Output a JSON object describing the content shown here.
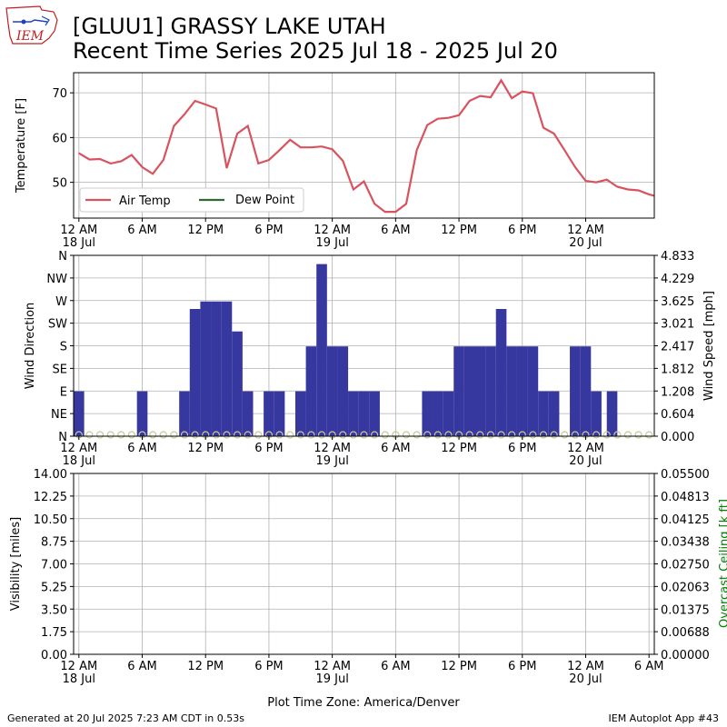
{
  "header": {
    "title_line1": "[GLUU1] GRASSY LAKE  UTAH",
    "title_line2": "Recent Time Series 2025 Jul 18 - 2025 Jul 20",
    "logo_text": "IEM"
  },
  "footer": {
    "generated": "Generated at 20 Jul 2025 7:23 AM CDT in 0.53s",
    "app": "IEM Autoplot App #43",
    "xlabel": "Plot Time Zone: America/Denver"
  },
  "colors": {
    "air_temp": "#d9535f",
    "dew_point": "#2e6b2e",
    "wind_bar": "#3737a0",
    "direction_marker": "#c8c896",
    "ceiling_axis": "#008000"
  },
  "chart_data": [
    {
      "type": "line",
      "ylabel": "Temperature [F]",
      "ylim": [
        42,
        74.5
      ],
      "y_ticks": [
        50,
        60,
        70
      ],
      "x_range_hours": [
        -0.5,
        54.5
      ],
      "x_ticks": [
        {
          "h": 0,
          "label": "12 AM",
          "date": "18 Jul"
        },
        {
          "h": 6,
          "label": "6 AM"
        },
        {
          "h": 12,
          "label": "12 PM"
        },
        {
          "h": 18,
          "label": "6 PM"
        },
        {
          "h": 24,
          "label": "12 AM",
          "date": "19 Jul"
        },
        {
          "h": 30,
          "label": "6 AM"
        },
        {
          "h": 36,
          "label": "12 PM"
        },
        {
          "h": 42,
          "label": "6 PM"
        },
        {
          "h": 48,
          "label": "12 AM",
          "date": "20 Jul"
        }
      ],
      "grid": true,
      "legend": "lower-left",
      "series": [
        {
          "name": "Air Temp",
          "x": [
            0,
            1,
            2,
            3,
            4,
            5,
            6,
            7,
            8,
            9,
            10,
            11,
            12,
            13,
            14,
            15,
            16,
            17,
            18,
            19,
            20,
            21,
            22,
            23,
            24,
            25,
            26,
            27,
            28,
            29,
            30,
            31,
            32,
            33,
            34,
            35,
            36,
            37,
            38,
            39,
            40,
            41,
            42,
            43,
            44,
            45,
            46,
            47,
            48,
            49,
            50,
            51,
            52,
            53,
            54,
            54.5
          ],
          "y": [
            56.5,
            55.1,
            55.2,
            54.2,
            54.7,
            56.1,
            53.4,
            51.9,
            55.0,
            62.6,
            65.2,
            68.2,
            67.4,
            66.5,
            53.2,
            60.9,
            62.6,
            54.2,
            55.0,
            57.2,
            59.5,
            57.8,
            57.8,
            58.0,
            57.4,
            54.8,
            48.4,
            50.2,
            45.2,
            43.4,
            43.4,
            45.2,
            57.2,
            62.8,
            64.2,
            64.4,
            65.0,
            68.2,
            69.3,
            69.0,
            72.8,
            68.8,
            70.3,
            69.9,
            62.2,
            60.9,
            57.2,
            53.4,
            50.3,
            50.0,
            50.6,
            49.0,
            48.4,
            48.2,
            47.3,
            47.0
          ]
        },
        {
          "name": "Dew Point",
          "x": [],
          "y": []
        }
      ]
    },
    {
      "type": "bar",
      "ylabel": "Wind Direction",
      "y2label": "Wind Speed [mph]",
      "direction_ticks": [
        "N",
        "NE",
        "E",
        "SE",
        "S",
        "SW",
        "W",
        "NW",
        "N"
      ],
      "speed_ticks": [
        "0.000",
        "0.604",
        "1.208",
        "1.812",
        "2.417",
        "3.021",
        "3.625",
        "4.229",
        "4.833"
      ],
      "speed_lim": [
        0,
        4.833
      ],
      "bar_width_hours": 1,
      "wind_speed_bars": [
        {
          "h": 0,
          "mph": 1.2
        },
        {
          "h": 6,
          "mph": 1.2
        },
        {
          "h": 10,
          "mph": 1.2
        },
        {
          "h": 11,
          "mph": 3.4
        },
        {
          "h": 12,
          "mph": 3.6
        },
        {
          "h": 13,
          "mph": 3.6
        },
        {
          "h": 14,
          "mph": 3.6
        },
        {
          "h": 15,
          "mph": 2.8
        },
        {
          "h": 16,
          "mph": 1.2
        },
        {
          "h": 18,
          "mph": 1.2
        },
        {
          "h": 19,
          "mph": 1.2
        },
        {
          "h": 21,
          "mph": 1.2
        },
        {
          "h": 22,
          "mph": 2.4
        },
        {
          "h": 23,
          "mph": 4.6
        },
        {
          "h": 24,
          "mph": 2.4
        },
        {
          "h": 25,
          "mph": 2.4
        },
        {
          "h": 26,
          "mph": 1.2
        },
        {
          "h": 27,
          "mph": 1.2
        },
        {
          "h": 28,
          "mph": 1.2
        },
        {
          "h": 33,
          "mph": 1.2
        },
        {
          "h": 34,
          "mph": 1.2
        },
        {
          "h": 35,
          "mph": 1.2
        },
        {
          "h": 36,
          "mph": 2.4
        },
        {
          "h": 37,
          "mph": 2.4
        },
        {
          "h": 38,
          "mph": 2.4
        },
        {
          "h": 39,
          "mph": 2.4
        },
        {
          "h": 40,
          "mph": 3.4
        },
        {
          "h": 41,
          "mph": 2.4
        },
        {
          "h": 42,
          "mph": 2.4
        },
        {
          "h": 43,
          "mph": 2.4
        },
        {
          "h": 44,
          "mph": 1.2
        },
        {
          "h": 45,
          "mph": 1.2
        },
        {
          "h": 47,
          "mph": 2.4
        },
        {
          "h": 48,
          "mph": 2.4
        },
        {
          "h": 49,
          "mph": 1.2
        },
        {
          "h": 50.5,
          "mph": 1.2
        }
      ],
      "direction_markers_deg_hours": [
        0,
        1,
        2,
        3,
        4,
        5,
        6,
        7,
        8,
        9,
        10,
        11,
        12,
        13,
        14,
        15,
        16,
        17,
        18,
        19,
        20,
        21,
        22,
        23,
        24,
        25,
        26,
        27,
        28,
        29,
        30,
        31,
        32,
        33,
        34,
        35,
        36,
        37,
        38,
        39,
        40,
        41,
        42,
        43,
        44,
        45,
        46,
        47,
        48,
        49,
        50,
        51,
        52,
        53,
        54
      ],
      "direction_markers_deg": 0
    },
    {
      "type": "line",
      "ylabel": "Visibility [miles]",
      "y2label": "Overcast Ceiling [k ft]",
      "visibility_ticks": [
        "0.00",
        "1.75",
        "3.50",
        "5.25",
        "7.00",
        "8.75",
        "10.50",
        "12.25",
        "14.00"
      ],
      "ceiling_ticks": [
        "0.00000",
        "0.00688",
        "0.01375",
        "0.02063",
        "0.02750",
        "0.03438",
        "0.04125",
        "0.04813",
        "0.05500"
      ],
      "extra_x_tick": {
        "h": 54,
        "label": "6 AM"
      },
      "series": []
    }
  ]
}
